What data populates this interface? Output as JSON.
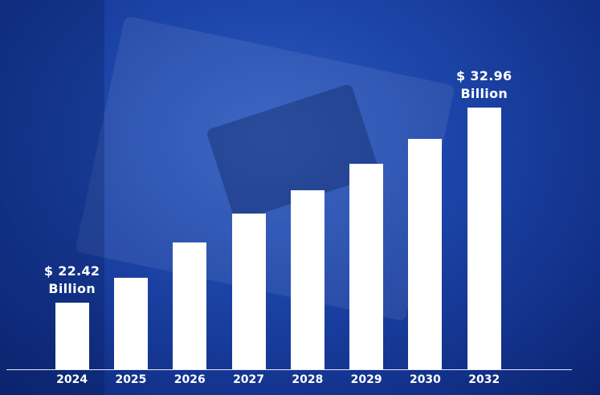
{
  "chart_data": {
    "type": "bar",
    "categories": [
      "2024",
      "2025",
      "2026",
      "2027",
      "2028",
      "2029",
      "2030",
      "2032"
    ],
    "values": [
      22.42,
      23.76,
      25.67,
      27.23,
      28.49,
      29.92,
      31.27,
      32.96
    ],
    "value_labels": [
      "$ 22.42 Billion",
      null,
      null,
      null,
      null,
      null,
      null,
      "$ 32.96 Billion"
    ],
    "color": "#ffffff",
    "ylim": [
      18.8,
      33.5
    ]
  }
}
